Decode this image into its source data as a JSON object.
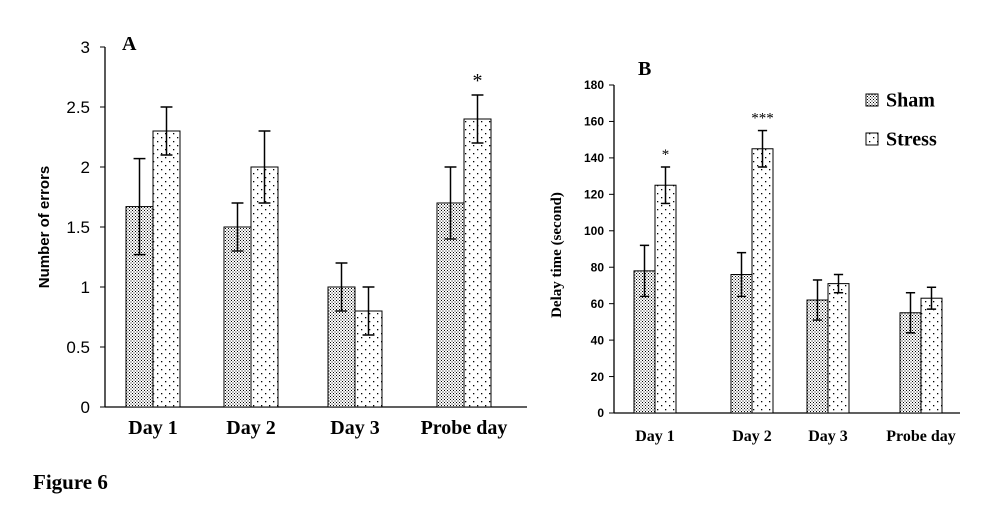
{
  "figure_label": "Figure 6",
  "chart_data": [
    {
      "panel_label": "A",
      "type": "bar",
      "categories": [
        "Day 1",
        "Day 2",
        "Day 3",
        "Probe day"
      ],
      "ylabel": "Number of errors",
      "xlabel": "",
      "ylim": [
        0,
        3
      ],
      "yticks": [
        "0",
        "0.5",
        "1",
        "1.5",
        "2",
        "2.5",
        "3"
      ],
      "legend": "none",
      "series": [
        {
          "pattern": "dense-dots",
          "values": [
            1.67,
            1.5,
            1.0,
            1.7
          ],
          "errors": [
            0.4,
            0.2,
            0.2,
            0.3
          ]
        },
        {
          "pattern": "sparse-dots",
          "values": [
            2.3,
            2.0,
            0.8,
            2.4
          ],
          "errors": [
            0.2,
            0.3,
            0.2,
            0.2
          ]
        }
      ],
      "annotations": [
        {
          "category": 3,
          "series": 1,
          "text": "*"
        }
      ]
    },
    {
      "panel_label": "B",
      "type": "bar",
      "categories": [
        "Day 1",
        "Day 2",
        "Day 3",
        "Probe day"
      ],
      "ylabel": "Delay time (second)",
      "xlabel": "",
      "ylim": [
        0,
        180
      ],
      "yticks": [
        "0",
        "20",
        "40",
        "60",
        "80",
        "100",
        "120",
        "140",
        "160",
        "180"
      ],
      "legend": "top-right",
      "series": [
        {
          "name": "Sham",
          "pattern": "dense-dots",
          "values": [
            78,
            76,
            62,
            55
          ],
          "errors": [
            14,
            12,
            11,
            11
          ]
        },
        {
          "name": "Stress",
          "pattern": "sparse-dots",
          "values": [
            125,
            145,
            71,
            63
          ],
          "errors": [
            10,
            10,
            5,
            6
          ]
        }
      ],
      "annotations": [
        {
          "category": 0,
          "series": 1,
          "text": "*"
        },
        {
          "category": 1,
          "series": 1,
          "text": "***"
        }
      ]
    }
  ]
}
